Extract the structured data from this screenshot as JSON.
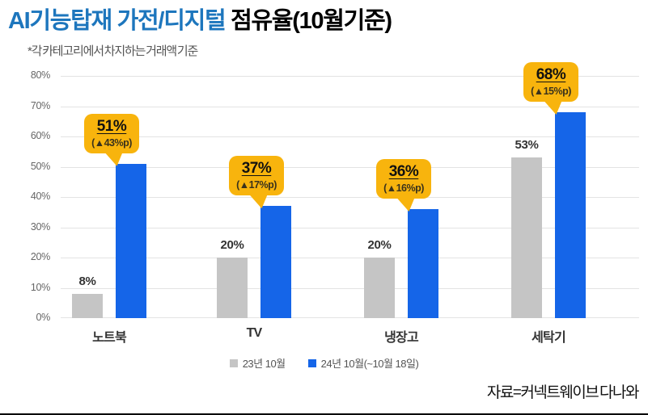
{
  "title": {
    "highlight": "AI기능탑재 가전/디지털",
    "rest": " 점유율(10월기준)"
  },
  "subtitle": "*각 카테고리에서 차지하는 거래액 기준",
  "source": "자료=커넥트웨이브 다나와",
  "colors": {
    "title_accent": "#1d76bd",
    "bar_2023": "#c5c5c5",
    "bar_2024": "#1565e8",
    "callout_bg": "#f8b40d",
    "grid": "#e3e3e3"
  },
  "legend": [
    {
      "label": "23년 10월",
      "color": "#c5c5c5"
    },
    {
      "label": "24년 10월(~10월 18일)",
      "color": "#1565e8"
    }
  ],
  "chart_data": {
    "type": "bar",
    "title": "AI기능탑재 가전/디지털 점유율(10월기준)",
    "categories": [
      "노트북",
      "TV",
      "냉장고",
      "세탁기"
    ],
    "series": [
      {
        "name": "23년 10월",
        "color": "#c5c5c5",
        "values": [
          8,
          20,
          20,
          53
        ]
      },
      {
        "name": "24년 10월(~10월 18일)",
        "color": "#1565e8",
        "values": [
          51,
          37,
          36,
          68
        ]
      }
    ],
    "bar_labels": [
      "8%",
      "20%",
      "20%",
      "53%"
    ],
    "callouts": [
      {
        "value": "51%",
        "delta": "(▲43%p)"
      },
      {
        "value": "37%",
        "delta": "(▲17%p)"
      },
      {
        "value": "36%",
        "delta": "(▲16%p)"
      },
      {
        "value": "68%",
        "delta": "(▲15%p)"
      }
    ],
    "y_ticks": [
      "80%",
      "70%",
      "60%",
      "50%",
      "40%",
      "30%",
      "20%",
      "10%",
      "0%"
    ],
    "ylim": [
      0,
      80
    ],
    "grid": true,
    "legend_position": "bottom"
  }
}
